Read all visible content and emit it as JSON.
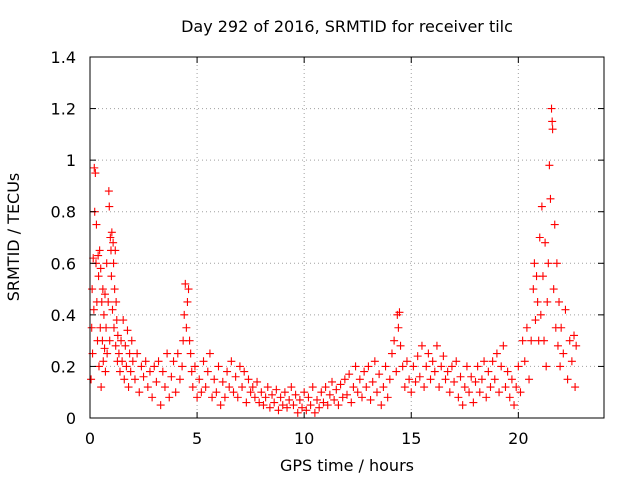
{
  "chart_data": {
    "type": "scatter",
    "title": "Day 292 of 2016, SRMTID for receiver tilc",
    "xlabel": "GPS time / hours",
    "ylabel": "SRMTID / TECUs",
    "xlim": [
      0,
      24
    ],
    "ylim": [
      0,
      1.4
    ],
    "x_ticks": [
      "0",
      "5",
      "10",
      "15",
      "20"
    ],
    "y_ticks": [
      "0",
      "0.2",
      "0.4",
      "0.6",
      "0.8",
      "1",
      "1.2",
      "1.4"
    ],
    "x_tick_values": [
      0,
      5,
      10,
      15,
      20
    ],
    "y_tick_values": [
      0,
      0.2,
      0.4,
      0.6,
      0.8,
      1.0,
      1.2,
      1.4
    ],
    "grid": true,
    "marker": "+",
    "series": [
      {
        "name": "SRMTID",
        "color": "#ff0000",
        "points": [
          [
            0.05,
            0.15
          ],
          [
            0.08,
            0.35
          ],
          [
            0.1,
            0.5
          ],
          [
            0.12,
            0.25
          ],
          [
            0.15,
            0.62
          ],
          [
            0.18,
            0.42
          ],
          [
            0.2,
            0.97
          ],
          [
            0.22,
            0.8
          ],
          [
            0.25,
            0.95
          ],
          [
            0.28,
            0.6
          ],
          [
            0.3,
            0.75
          ],
          [
            0.32,
            0.45
          ],
          [
            0.35,
            0.3
          ],
          [
            0.38,
            0.63
          ],
          [
            0.4,
            0.55
          ],
          [
            0.42,
            0.2
          ],
          [
            0.45,
            0.65
          ],
          [
            0.48,
            0.35
          ],
          [
            0.5,
            0.58
          ],
          [
            0.52,
            0.12
          ],
          [
            0.55,
            0.45
          ],
          [
            0.58,
            0.3
          ],
          [
            0.6,
            0.5
          ],
          [
            0.62,
            0.22
          ],
          [
            0.65,
            0.4
          ],
          [
            0.68,
            0.27
          ],
          [
            0.7,
            0.48
          ],
          [
            0.72,
            0.18
          ],
          [
            0.75,
            0.35
          ],
          [
            0.78,
            0.6
          ],
          [
            0.8,
            0.25
          ],
          [
            0.85,
            0.45
          ],
          [
            0.88,
            0.88
          ],
          [
            0.9,
            0.82
          ],
          [
            0.92,
            0.3
          ],
          [
            0.95,
            0.7
          ],
          [
            0.98,
            0.65
          ],
          [
            1.0,
            0.55
          ],
          [
            1.02,
            0.72
          ],
          [
            1.05,
            0.42
          ],
          [
            1.08,
            0.68
          ],
          [
            1.1,
            0.6
          ],
          [
            1.12,
            0.35
          ],
          [
            1.15,
            0.5
          ],
          [
            1.18,
            0.65
          ],
          [
            1.2,
            0.28
          ],
          [
            1.22,
            0.45
          ],
          [
            1.25,
            0.38
          ],
          [
            1.28,
            0.22
          ],
          [
            1.3,
            0.32
          ],
          [
            1.35,
            0.25
          ],
          [
            1.4,
            0.18
          ],
          [
            1.45,
            0.3
          ],
          [
            1.5,
            0.22
          ],
          [
            1.55,
            0.38
          ],
          [
            1.6,
            0.15
          ],
          [
            1.65,
            0.28
          ],
          [
            1.7,
            0.2
          ],
          [
            1.75,
            0.34
          ],
          [
            1.8,
            0.12
          ],
          [
            1.85,
            0.25
          ],
          [
            1.9,
            0.18
          ],
          [
            1.95,
            0.3
          ],
          [
            2.0,
            0.22
          ],
          [
            2.1,
            0.15
          ],
          [
            2.2,
            0.25
          ],
          [
            2.3,
            0.1
          ],
          [
            2.4,
            0.2
          ],
          [
            2.5,
            0.16
          ],
          [
            2.6,
            0.22
          ],
          [
            2.7,
            0.12
          ],
          [
            2.8,
            0.18
          ],
          [
            2.9,
            0.08
          ],
          [
            3.0,
            0.2
          ],
          [
            3.1,
            0.14
          ],
          [
            3.2,
            0.22
          ],
          [
            3.3,
            0.05
          ],
          [
            3.4,
            0.18
          ],
          [
            3.5,
            0.12
          ],
          [
            3.6,
            0.25
          ],
          [
            3.7,
            0.08
          ],
          [
            3.8,
            0.16
          ],
          [
            3.9,
            0.22
          ],
          [
            4.0,
            0.1
          ],
          [
            4.1,
            0.25
          ],
          [
            4.2,
            0.15
          ],
          [
            4.3,
            0.2
          ],
          [
            4.35,
            0.3
          ],
          [
            4.4,
            0.4
          ],
          [
            4.45,
            0.52
          ],
          [
            4.5,
            0.35
          ],
          [
            4.55,
            0.45
          ],
          [
            4.6,
            0.5
          ],
          [
            4.65,
            0.3
          ],
          [
            4.7,
            0.25
          ],
          [
            4.75,
            0.18
          ],
          [
            4.8,
            0.12
          ],
          [
            4.9,
            0.2
          ],
          [
            5.0,
            0.08
          ],
          [
            5.1,
            0.15
          ],
          [
            5.2,
            0.1
          ],
          [
            5.3,
            0.22
          ],
          [
            5.4,
            0.12
          ],
          [
            5.5,
            0.18
          ],
          [
            5.6,
            0.25
          ],
          [
            5.7,
            0.08
          ],
          [
            5.8,
            0.15
          ],
          [
            5.9,
            0.1
          ],
          [
            6.0,
            0.2
          ],
          [
            6.1,
            0.05
          ],
          [
            6.2,
            0.14
          ],
          [
            6.3,
            0.08
          ],
          [
            6.4,
            0.18
          ],
          [
            6.5,
            0.12
          ],
          [
            6.6,
            0.22
          ],
          [
            6.7,
            0.1
          ],
          [
            6.8,
            0.16
          ],
          [
            6.9,
            0.08
          ],
          [
            7.0,
            0.2
          ],
          [
            7.1,
            0.12
          ],
          [
            7.2,
            0.18
          ],
          [
            7.3,
            0.06
          ],
          [
            7.4,
            0.15
          ],
          [
            7.5,
            0.1
          ],
          [
            7.6,
            0.12
          ],
          [
            7.7,
            0.08
          ],
          [
            7.8,
            0.14
          ],
          [
            7.9,
            0.06
          ],
          [
            8.0,
            0.1
          ],
          [
            8.1,
            0.05
          ],
          [
            8.2,
            0.08
          ],
          [
            8.3,
            0.12
          ],
          [
            8.4,
            0.04
          ],
          [
            8.5,
            0.09
          ],
          [
            8.6,
            0.06
          ],
          [
            8.7,
            0.11
          ],
          [
            8.8,
            0.03
          ],
          [
            8.9,
            0.08
          ],
          [
            9.0,
            0.05
          ],
          [
            9.1,
            0.1
          ],
          [
            9.2,
            0.04
          ],
          [
            9.3,
            0.07
          ],
          [
            9.4,
            0.12
          ],
          [
            9.5,
            0.05
          ],
          [
            9.6,
            0.09
          ],
          [
            9.7,
            0.02
          ],
          [
            9.8,
            0.07
          ],
          [
            9.9,
            0.04
          ],
          [
            10.0,
            0.1
          ],
          [
            10.1,
            0.03
          ],
          [
            10.2,
            0.08
          ],
          [
            10.3,
            0.05
          ],
          [
            10.4,
            0.12
          ],
          [
            10.5,
            0.02
          ],
          [
            10.6,
            0.07
          ],
          [
            10.7,
            0.04
          ],
          [
            10.8,
            0.1
          ],
          [
            10.9,
            0.06
          ],
          [
            11.0,
            0.12
          ],
          [
            11.1,
            0.05
          ],
          [
            11.2,
            0.09
          ],
          [
            11.3,
            0.14
          ],
          [
            11.4,
            0.07
          ],
          [
            11.5,
            0.11
          ],
          [
            11.6,
            0.05
          ],
          [
            11.7,
            0.13
          ],
          [
            11.8,
            0.08
          ],
          [
            11.9,
            0.15
          ],
          [
            12.0,
            0.09
          ],
          [
            12.1,
            0.17
          ],
          [
            12.2,
            0.06
          ],
          [
            12.3,
            0.12
          ],
          [
            12.4,
            0.2
          ],
          [
            12.5,
            0.1
          ],
          [
            12.6,
            0.15
          ],
          [
            12.7,
            0.08
          ],
          [
            12.8,
            0.18
          ],
          [
            12.9,
            0.12
          ],
          [
            13.0,
            0.2
          ],
          [
            13.1,
            0.07
          ],
          [
            13.2,
            0.14
          ],
          [
            13.3,
            0.22
          ],
          [
            13.4,
            0.1
          ],
          [
            13.5,
            0.17
          ],
          [
            13.6,
            0.05
          ],
          [
            13.7,
            0.12
          ],
          [
            13.8,
            0.2
          ],
          [
            13.9,
            0.08
          ],
          [
            14.0,
            0.15
          ],
          [
            14.1,
            0.25
          ],
          [
            14.2,
            0.3
          ],
          [
            14.3,
            0.18
          ],
          [
            14.35,
            0.4
          ],
          [
            14.4,
            0.35
          ],
          [
            14.45,
            0.41
          ],
          [
            14.5,
            0.28
          ],
          [
            14.6,
            0.2
          ],
          [
            14.7,
            0.12
          ],
          [
            14.8,
            0.22
          ],
          [
            14.9,
            0.15
          ],
          [
            15.0,
            0.1
          ],
          [
            15.1,
            0.2
          ],
          [
            15.2,
            0.14
          ],
          [
            15.3,
            0.24
          ],
          [
            15.4,
            0.16
          ],
          [
            15.5,
            0.28
          ],
          [
            15.6,
            0.12
          ],
          [
            15.7,
            0.2
          ],
          [
            15.8,
            0.25
          ],
          [
            15.9,
            0.15
          ],
          [
            16.0,
            0.22
          ],
          [
            16.1,
            0.18
          ],
          [
            16.2,
            0.28
          ],
          [
            16.3,
            0.12
          ],
          [
            16.4,
            0.2
          ],
          [
            16.5,
            0.24
          ],
          [
            16.6,
            0.15
          ],
          [
            16.7,
            0.18
          ],
          [
            16.8,
            0.1
          ],
          [
            16.9,
            0.2
          ],
          [
            17.0,
            0.14
          ],
          [
            17.1,
            0.22
          ],
          [
            17.2,
            0.08
          ],
          [
            17.3,
            0.16
          ],
          [
            17.4,
            0.05
          ],
          [
            17.5,
            0.12
          ],
          [
            17.6,
            0.2
          ],
          [
            17.7,
            0.1
          ],
          [
            17.8,
            0.16
          ],
          [
            17.9,
            0.06
          ],
          [
            18.0,
            0.14
          ],
          [
            18.1,
            0.2
          ],
          [
            18.2,
            0.1
          ],
          [
            18.3,
            0.15
          ],
          [
            18.4,
            0.22
          ],
          [
            18.5,
            0.08
          ],
          [
            18.6,
            0.18
          ],
          [
            18.7,
            0.12
          ],
          [
            18.8,
            0.22
          ],
          [
            18.9,
            0.15
          ],
          [
            19.0,
            0.25
          ],
          [
            19.1,
            0.1
          ],
          [
            19.2,
            0.2
          ],
          [
            19.3,
            0.28
          ],
          [
            19.4,
            0.12
          ],
          [
            19.5,
            0.18
          ],
          [
            19.6,
            0.08
          ],
          [
            19.7,
            0.15
          ],
          [
            19.8,
            0.05
          ],
          [
            19.9,
            0.12
          ],
          [
            20.0,
            0.2
          ],
          [
            20.1,
            0.1
          ],
          [
            20.2,
            0.3
          ],
          [
            20.3,
            0.22
          ],
          [
            20.4,
            0.35
          ],
          [
            20.5,
            0.15
          ],
          [
            20.6,
            0.3
          ],
          [
            20.7,
            0.5
          ],
          [
            20.75,
            0.6
          ],
          [
            20.8,
            0.38
          ],
          [
            20.85,
            0.55
          ],
          [
            20.9,
            0.45
          ],
          [
            20.95,
            0.3
          ],
          [
            21.0,
            0.7
          ],
          [
            21.05,
            0.4
          ],
          [
            21.1,
            0.82
          ],
          [
            21.15,
            0.55
          ],
          [
            21.2,
            0.3
          ],
          [
            21.25,
            0.68
          ],
          [
            21.3,
            0.2
          ],
          [
            21.35,
            0.45
          ],
          [
            21.4,
            0.6
          ],
          [
            21.45,
            0.98
          ],
          [
            21.5,
            0.85
          ],
          [
            21.55,
            1.2
          ],
          [
            21.58,
            1.15
          ],
          [
            21.6,
            1.12
          ],
          [
            21.65,
            0.5
          ],
          [
            21.7,
            0.75
          ],
          [
            21.75,
            0.35
          ],
          [
            21.8,
            0.6
          ],
          [
            21.85,
            0.28
          ],
          [
            21.9,
            0.45
          ],
          [
            21.95,
            0.2
          ],
          [
            22.0,
            0.35
          ],
          [
            22.1,
            0.25
          ],
          [
            22.2,
            0.42
          ],
          [
            22.3,
            0.15
          ],
          [
            22.4,
            0.3
          ],
          [
            22.5,
            0.22
          ],
          [
            22.6,
            0.32
          ],
          [
            22.65,
            0.12
          ],
          [
            22.7,
            0.28
          ]
        ]
      }
    ]
  }
}
